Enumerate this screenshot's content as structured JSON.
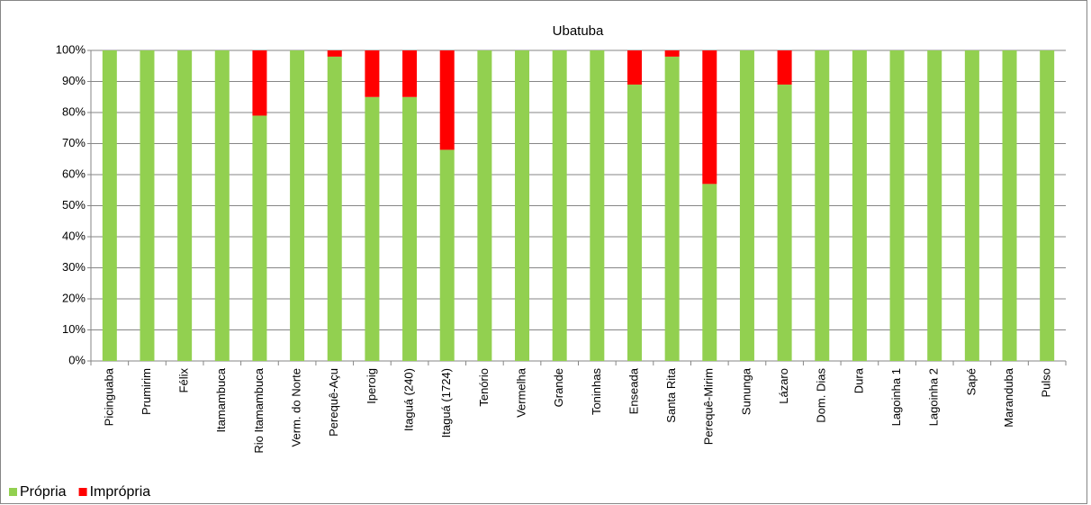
{
  "chart_data": {
    "type": "stacked_bar",
    "title": "Ubatuba",
    "categories": [
      "Picinguaba",
      "Prumirim",
      "Félix",
      "Itamambuca",
      "Rio Itamambuca",
      "Verm. do Norte",
      "Perequê-Açu",
      "Iperoig",
      "Itaguá (240)",
      "Itaguá (1724)",
      "Tenório",
      "Vermelha",
      "Grande",
      "Toninhas",
      "Enseada",
      "Santa Rita",
      "Perequê-Mirim",
      "Sununga",
      "Lázaro",
      "Dom. Dias",
      "Dura",
      "Lagoinha 1",
      "Lagoinha 2",
      "Sapé",
      "Maranduba",
      "Pulso"
    ],
    "series": [
      {
        "name": "Própria",
        "color": "#92d050",
        "values": [
          100,
          100,
          100,
          100,
          79,
          100,
          98,
          85,
          85,
          68,
          100,
          100,
          100,
          100,
          89,
          98,
          57,
          100,
          89,
          100,
          100,
          100,
          100,
          100,
          100,
          100
        ]
      },
      {
        "name": "Imprópria",
        "color": "#ff0000",
        "values": [
          0,
          0,
          0,
          0,
          21,
          0,
          2,
          15,
          15,
          32,
          0,
          0,
          0,
          0,
          11,
          2,
          43,
          0,
          11,
          0,
          0,
          0,
          0,
          0,
          0,
          0
        ]
      }
    ],
    "ylim": [
      0,
      100
    ],
    "yticks": [
      {
        "value": 0,
        "label": "0%"
      },
      {
        "value": 10,
        "label": "10%"
      },
      {
        "value": 20,
        "label": "20%"
      },
      {
        "value": 30,
        "label": "30%"
      },
      {
        "value": 40,
        "label": "40%"
      },
      {
        "value": 50,
        "label": "50%"
      },
      {
        "value": 60,
        "label": "60%"
      },
      {
        "value": 70,
        "label": "70%"
      },
      {
        "value": 80,
        "label": "80%"
      },
      {
        "value": 90,
        "label": "90%"
      },
      {
        "value": 100,
        "label": "100%"
      }
    ],
    "grid": true,
    "legend": "bottom-left"
  }
}
